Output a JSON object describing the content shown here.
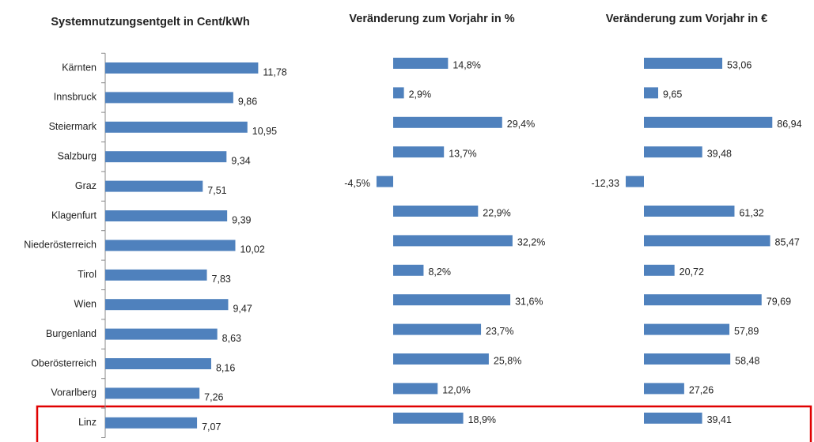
{
  "chart_data": [
    {
      "type": "bar",
      "orientation": "horizontal",
      "title": "Systemnutzungsentgelt in Cent/kWh",
      "categories": [
        "Kärnten",
        "Innsbruck",
        "Steiermark",
        "Salzburg",
        "Graz",
        "Klagenfurt",
        "Niederösterreich",
        "Tirol",
        "Wien",
        "Burgenland",
        "Oberösterreich",
        "Vorarlberg",
        "Linz"
      ],
      "values": [
        11.78,
        9.86,
        10.95,
        9.34,
        7.51,
        9.39,
        10.02,
        7.83,
        9.47,
        8.63,
        8.16,
        7.26,
        7.07
      ],
      "value_labels": [
        "11,78",
        "9,86",
        "10,95",
        "9,34",
        "7,51",
        "9,39",
        "10,02",
        "7,83",
        "9,47",
        "8,63",
        "8,16",
        "7,26",
        "7,07"
      ],
      "color": "#4f81bd",
      "xlim": [
        0,
        12
      ]
    },
    {
      "type": "bar",
      "orientation": "horizontal",
      "title": "Veränderung zum Vorjahr in %",
      "values": [
        14.8,
        2.9,
        29.4,
        13.7,
        -4.5,
        22.9,
        32.2,
        8.2,
        31.6,
        23.7,
        25.8,
        12.0,
        18.9
      ],
      "value_labels": [
        "14,8%",
        "2,9%",
        "29,4%",
        "13,7%",
        "-4,5%",
        "22,9%",
        "32,2%",
        "8,2%",
        "31,6%",
        "23,7%",
        "25,8%",
        "12,0%",
        "18,9%"
      ],
      "color": "#4f81bd",
      "xlim": [
        -5,
        35
      ]
    },
    {
      "type": "bar",
      "orientation": "horizontal",
      "title": "Veränderung zum Vorjahr in €",
      "values": [
        53.06,
        9.65,
        86.94,
        39.48,
        -12.33,
        61.32,
        85.47,
        20.72,
        79.69,
        57.89,
        58.48,
        27.26,
        39.41
      ],
      "value_labels": [
        "53,06",
        "9,65",
        "86,94",
        "39,48",
        "-12,33",
        "61,32",
        "85,47",
        "20,72",
        "79,69",
        "57,89",
        "58,48",
        "27,26",
        "39,41"
      ],
      "color": "#4f81bd",
      "xlim": [
        -15,
        90
      ]
    }
  ]
}
